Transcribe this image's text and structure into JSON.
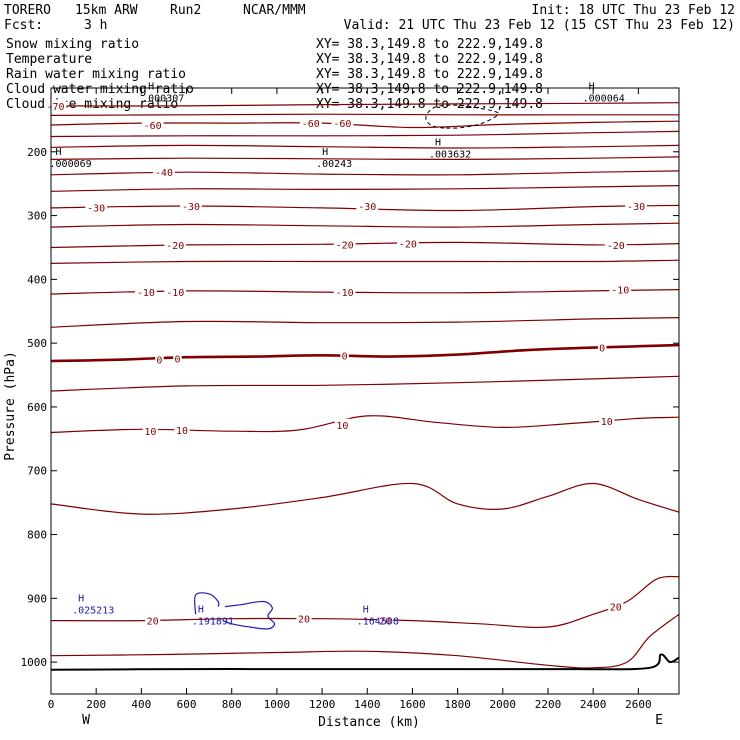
{
  "header": {
    "model": "TORERO",
    "resolution": "15km ARW",
    "run": "Run2",
    "org": "NCAR/MMM",
    "init": "Init: 18 UTC Thu 23 Feb 12",
    "fcst_label": "Fcst:",
    "fcst_value": "3 h",
    "valid": "Valid: 21 UTC Thu 23 Feb 12 (15 CST Thu 23 Feb 12)"
  },
  "colors": {
    "temperature": "#800000",
    "snow": "#000000",
    "rain": "#d02020",
    "cloud_water": "#1a1ab4",
    "cloud_ice": "#000000",
    "terrain": "#000000",
    "xy_text": "#d02020"
  },
  "legend": [
    {
      "label": "Snow mixing ratio",
      "xy": "XY=  38.3,149.8 to 222.9,149.8",
      "color": "#000000"
    },
    {
      "label": "Temperature",
      "xy": "XY=  38.3,149.8 to 222.9,149.8",
      "color": "#d02020"
    },
    {
      "label": "Rain water mixing ratio",
      "xy": "XY=  38.3,149.8 to 222.9,149.8",
      "color": "#d02020"
    },
    {
      "label": "Cloud water mixing ratio",
      "xy": "XY=  38.3,149.8 to 222.9,149.8",
      "color": "#1a1ab4"
    },
    {
      "label": "Cloud ice mixing ratio",
      "xy": "XY=  38.3,149.8 to 222.9,149.8",
      "color": "#000000"
    }
  ],
  "chart_data": {
    "type": "cross-section contour",
    "xlabel": "Distance (km)",
    "ylabel": "Pressure (hPa)",
    "xlim": [
      0,
      2780
    ],
    "ylim": [
      1050,
      100
    ],
    "x_ticks": [
      0,
      200,
      400,
      600,
      800,
      1000,
      1200,
      1400,
      1600,
      1800,
      2000,
      2200,
      2400,
      2600
    ],
    "y_ticks": [
      200,
      300,
      400,
      500,
      600,
      700,
      800,
      900,
      1000
    ],
    "west_label": "W",
    "east_label": "E",
    "temperature_contours": [
      {
        "value": -70,
        "points": [
          [
            0,
            128
          ],
          [
            600,
            128
          ],
          [
            1200,
            126
          ],
          [
            1800,
            125
          ],
          [
            2400,
            124
          ],
          [
            2780,
            123
          ]
        ]
      },
      {
        "value": -65,
        "points": [
          [
            0,
            143
          ],
          [
            600,
            142
          ],
          [
            1200,
            141
          ],
          [
            1800,
            142
          ],
          [
            2400,
            142
          ],
          [
            2780,
            142
          ]
        ]
      },
      {
        "value": -60,
        "points": [
          [
            0,
            158
          ],
          [
            400,
            155
          ],
          [
            800,
            155
          ],
          [
            1200,
            155
          ],
          [
            1600,
            162
          ],
          [
            2000,
            157
          ],
          [
            2400,
            154
          ],
          [
            2780,
            152
          ]
        ]
      },
      {
        "value": -55,
        "points": [
          [
            0,
            176
          ],
          [
            600,
            175
          ],
          [
            1200,
            175
          ],
          [
            1800,
            174
          ],
          [
            2400,
            170
          ],
          [
            2780,
            168
          ]
        ]
      },
      {
        "value": -50,
        "points": [
          [
            0,
            193
          ],
          [
            600,
            190
          ],
          [
            1200,
            192
          ],
          [
            1800,
            194
          ],
          [
            2400,
            192
          ],
          [
            2780,
            190
          ]
        ]
      },
      {
        "value": -45,
        "points": [
          [
            0,
            212
          ],
          [
            600,
            210
          ],
          [
            1200,
            211
          ],
          [
            1800,
            212
          ],
          [
            2400,
            210
          ],
          [
            2780,
            208
          ]
        ]
      },
      {
        "value": -40,
        "points": [
          [
            0,
            236
          ],
          [
            600,
            232
          ],
          [
            1200,
            235
          ],
          [
            1800,
            236
          ],
          [
            2400,
            232
          ],
          [
            2780,
            230
          ]
        ]
      },
      {
        "value": -35,
        "points": [
          [
            0,
            262
          ],
          [
            600,
            258
          ],
          [
            1200,
            259
          ],
          [
            1800,
            258
          ],
          [
            2400,
            255
          ],
          [
            2780,
            253
          ]
        ]
      },
      {
        "value": -30,
        "points": [
          [
            0,
            288
          ],
          [
            600,
            285
          ],
          [
            1200,
            288
          ],
          [
            1800,
            292
          ],
          [
            2400,
            286
          ],
          [
            2780,
            284
          ]
        ]
      },
      {
        "value": -25,
        "points": [
          [
            0,
            318
          ],
          [
            600,
            314
          ],
          [
            1200,
            316
          ],
          [
            1800,
            318
          ],
          [
            2400,
            314
          ],
          [
            2780,
            312
          ]
        ]
      },
      {
        "value": -20,
        "points": [
          [
            0,
            350
          ],
          [
            600,
            346
          ],
          [
            1200,
            345
          ],
          [
            1800,
            342
          ],
          [
            2400,
            346
          ],
          [
            2780,
            344
          ]
        ]
      },
      {
        "value": -15,
        "points": [
          [
            0,
            375
          ],
          [
            600,
            372
          ],
          [
            1200,
            372
          ],
          [
            1800,
            372
          ],
          [
            2400,
            372
          ],
          [
            2780,
            370
          ]
        ]
      },
      {
        "value": -10,
        "points": [
          [
            0,
            423
          ],
          [
            600,
            418
          ],
          [
            1200,
            420
          ],
          [
            1800,
            421
          ],
          [
            2400,
            418
          ],
          [
            2780,
            416
          ]
        ]
      },
      {
        "value": -5,
        "points": [
          [
            0,
            475
          ],
          [
            600,
            466
          ],
          [
            1200,
            468
          ],
          [
            1800,
            467
          ],
          [
            2400,
            462
          ],
          [
            2780,
            460
          ]
        ]
      },
      {
        "value": 0,
        "points": [
          [
            0,
            528
          ],
          [
            300,
            526
          ],
          [
            600,
            522
          ],
          [
            900,
            521
          ],
          [
            1200,
            519
          ],
          [
            1500,
            521
          ],
          [
            1800,
            518
          ],
          [
            2100,
            511
          ],
          [
            2400,
            507
          ],
          [
            2780,
            503
          ]
        ]
      },
      {
        "value": 5,
        "points": [
          [
            0,
            575
          ],
          [
            600,
            567
          ],
          [
            1200,
            566
          ],
          [
            1800,
            562
          ],
          [
            2400,
            556
          ],
          [
            2780,
            552
          ]
        ]
      },
      {
        "value": 10,
        "points": [
          [
            0,
            640
          ],
          [
            400,
            635
          ],
          [
            800,
            638
          ],
          [
            1100,
            636
          ],
          [
            1400,
            614
          ],
          [
            1700,
            624
          ],
          [
            2000,
            632
          ],
          [
            2300,
            626
          ],
          [
            2600,
            618
          ],
          [
            2780,
            616
          ]
        ]
      },
      {
        "value": 15,
        "points": [
          [
            0,
            752
          ],
          [
            400,
            768
          ],
          [
            800,
            760
          ],
          [
            1200,
            742
          ],
          [
            1600,
            720
          ],
          [
            1800,
            752
          ],
          [
            2000,
            760
          ],
          [
            2200,
            740
          ],
          [
            2400,
            720
          ],
          [
            2600,
            745
          ],
          [
            2780,
            765
          ]
        ]
      },
      {
        "value": 20,
        "points": [
          [
            0,
            935
          ],
          [
            400,
            935
          ],
          [
            800,
            932
          ],
          [
            1200,
            932
          ],
          [
            1600,
            935
          ],
          [
            1900,
            940
          ],
          [
            2200,
            945
          ],
          [
            2400,
            925
          ],
          [
            2550,
            905
          ],
          [
            2680,
            870
          ],
          [
            2780,
            866
          ]
        ]
      },
      {
        "value": 25,
        "points": [
          [
            0,
            990
          ],
          [
            500,
            988
          ],
          [
            1000,
            985
          ],
          [
            1400,
            983
          ],
          [
            1800,
            990
          ],
          [
            2200,
            1005
          ],
          [
            2400,
            1009
          ],
          [
            2550,
            1000
          ],
          [
            2650,
            960
          ],
          [
            2780,
            925
          ]
        ]
      }
    ],
    "terrain_profile": [
      [
        0,
        1012
      ],
      [
        600,
        1011
      ],
      [
        1200,
        1011
      ],
      [
        1800,
        1011
      ],
      [
        2300,
        1011
      ],
      [
        2650,
        1009
      ],
      [
        2700,
        988
      ],
      [
        2740,
        1000
      ],
      [
        2780,
        993
      ]
    ],
    "labels": [
      {
        "text": "-70",
        "x": 20,
        "pressure": 128,
        "series": "temperature"
      },
      {
        "text": "-60",
        "x": 450,
        "pressure": 158,
        "series": "temperature"
      },
      {
        "text": "-60",
        "x": 1150,
        "pressure": 155,
        "series": "temperature"
      },
      {
        "text": "-60",
        "x": 1290,
        "pressure": 155,
        "series": "temperature"
      },
      {
        "text": "-40",
        "x": 500,
        "pressure": 232,
        "series": "temperature"
      },
      {
        "text": "-30",
        "x": 200,
        "pressure": 287,
        "series": "temperature"
      },
      {
        "text": "-30",
        "x": 620,
        "pressure": 285,
        "series": "temperature"
      },
      {
        "text": "-30",
        "x": 1400,
        "pressure": 285,
        "series": "temperature"
      },
      {
        "text": "-30",
        "x": 2590,
        "pressure": 285,
        "series": "temperature"
      },
      {
        "text": "-20",
        "x": 550,
        "pressure": 346,
        "series": "temperature"
      },
      {
        "text": "-20",
        "x": 1300,
        "pressure": 345,
        "series": "temperature"
      },
      {
        "text": "-20",
        "x": 1580,
        "pressure": 344,
        "series": "temperature"
      },
      {
        "text": "-20",
        "x": 2500,
        "pressure": 346,
        "series": "temperature"
      },
      {
        "text": "-10",
        "x": 420,
        "pressure": 420,
        "series": "temperature"
      },
      {
        "text": "-10",
        "x": 550,
        "pressure": 420,
        "series": "temperature"
      },
      {
        "text": "-10",
        "x": 1300,
        "pressure": 420,
        "series": "temperature"
      },
      {
        "text": "-10",
        "x": 2520,
        "pressure": 416,
        "series": "temperature"
      },
      {
        "text": "0",
        "x": 480,
        "pressure": 526,
        "series": "temperature"
      },
      {
        "text": "0",
        "x": 560,
        "pressure": 524,
        "series": "temperature"
      },
      {
        "text": "0",
        "x": 1300,
        "pressure": 519,
        "series": "temperature"
      },
      {
        "text": "0",
        "x": 2440,
        "pressure": 507,
        "series": "temperature"
      },
      {
        "text": "10",
        "x": 440,
        "pressure": 638,
        "series": "temperature"
      },
      {
        "text": "10",
        "x": 580,
        "pressure": 636,
        "series": "temperature"
      },
      {
        "text": "10",
        "x": 1290,
        "pressure": 628,
        "series": "temperature"
      },
      {
        "text": "10",
        "x": 2460,
        "pressure": 622,
        "series": "temperature"
      },
      {
        "text": "20",
        "x": 450,
        "pressure": 935,
        "series": "temperature"
      },
      {
        "text": "20",
        "x": 1120,
        "pressure": 932,
        "series": "temperature"
      },
      {
        "text": "20",
        "x": 1480,
        "pressure": 935,
        "series": "temperature"
      },
      {
        "text": "20",
        "x": 2500,
        "pressure": 913,
        "series": "temperature"
      }
    ],
    "maxima": [
      {
        "text": "H",
        "value": ".000307",
        "x": 430,
        "pressure": 102,
        "series": "cloud_ice"
      },
      {
        "text": "H",
        "value": ".000064",
        "x": 2380,
        "pressure": 102,
        "series": "cloud_ice"
      },
      {
        "text": "H",
        "value": ".000069",
        "x": 20,
        "pressure": 205,
        "series": "cloud_ice"
      },
      {
        "text": "H",
        "value": ".00243",
        "x": 1200,
        "pressure": 205,
        "series": "cloud_ice"
      },
      {
        "text": "H",
        "value": ".003632",
        "x": 1700,
        "pressure": 190,
        "series": "snow"
      },
      {
        "text": "H",
        "value": ".025213",
        "x": 120,
        "pressure": 905,
        "series": "cloud_water"
      },
      {
        "text": "H",
        "value": ".191891",
        "x": 650,
        "pressure": 922,
        "series": "cloud_water"
      },
      {
        "text": "H",
        "value": ".164508",
        "x": 1380,
        "pressure": 922,
        "series": "cloud_water"
      }
    ],
    "snow_contour_value": 0.001,
    "snow_contour": [
      [
        1740,
        163
      ],
      [
        1680,
        158
      ],
      [
        1660,
        145
      ],
      [
        1700,
        130
      ],
      [
        1800,
        127
      ],
      [
        1900,
        132
      ],
      [
        1980,
        140
      ],
      [
        1910,
        155
      ],
      [
        1820,
        162
      ]
    ],
    "cloud_water_contours": [
      [
        [
          640,
          925
        ],
        [
          640,
          895
        ],
        [
          700,
          893
        ],
        [
          740,
          905
        ],
        [
          740,
          913
        ]
      ],
      [
        [
          770,
          913
        ],
        [
          840,
          910
        ],
        [
          940,
          905
        ],
        [
          980,
          915
        ],
        [
          960,
          928
        ],
        [
          990,
          940
        ],
        [
          960,
          948
        ],
        [
          880,
          945
        ],
        [
          800,
          940
        ],
        [
          760,
          935
        ]
      ]
    ]
  }
}
